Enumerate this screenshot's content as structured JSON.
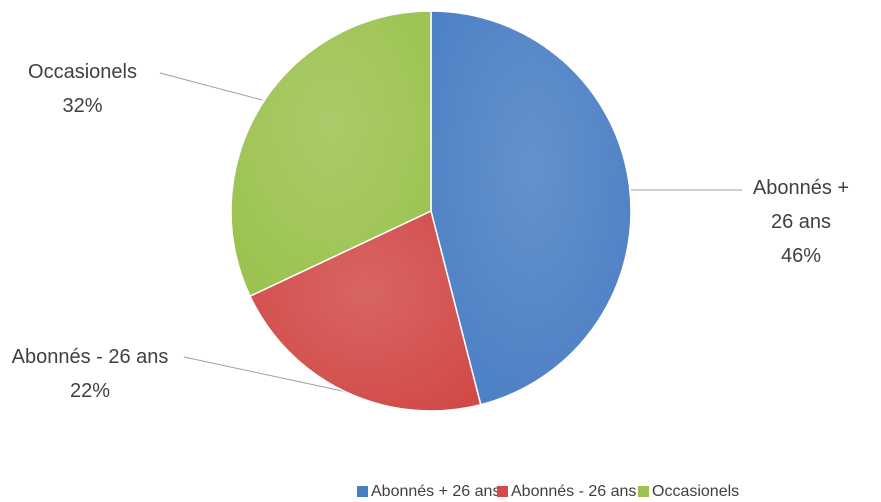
{
  "chart_data": {
    "type": "pie",
    "categories": [
      "Abonnés + 26 ans",
      "Abonnés - 26 ans",
      "Occasionels"
    ],
    "values": [
      46,
      22,
      32
    ],
    "value_labels": [
      "46%",
      "22%",
      "32%"
    ],
    "colors": [
      "#4a7ec4",
      "#d14a47",
      "#9bc24f"
    ],
    "legend": "bottom"
  }
}
